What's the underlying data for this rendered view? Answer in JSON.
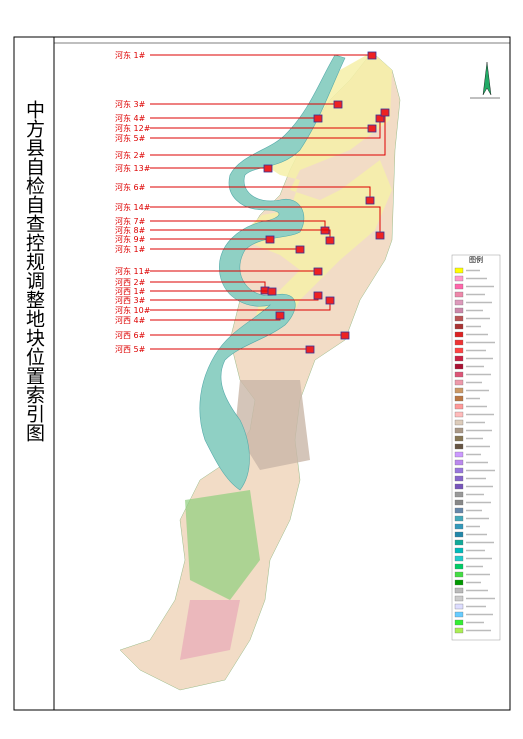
{
  "header": {
    "title": "中方县自检自查控规调整地块位置索引图"
  },
  "labels": [
    "河东 1#",
    "河东 3#",
    "河东 4#",
    "河东 12#",
    "河东 5#",
    "河东 2#",
    "河东 13#",
    "河东 6#",
    "河东 14#",
    "河东 7#",
    "河东 8#",
    "河东 9#",
    "河东 1#",
    "河东 11#",
    "河西 2#",
    "河西 1#",
    "河西 3#",
    "河东 10#",
    "河西 4#",
    "河西 6#",
    "河西 5#"
  ],
  "legend": {
    "title": "图例"
  }
}
